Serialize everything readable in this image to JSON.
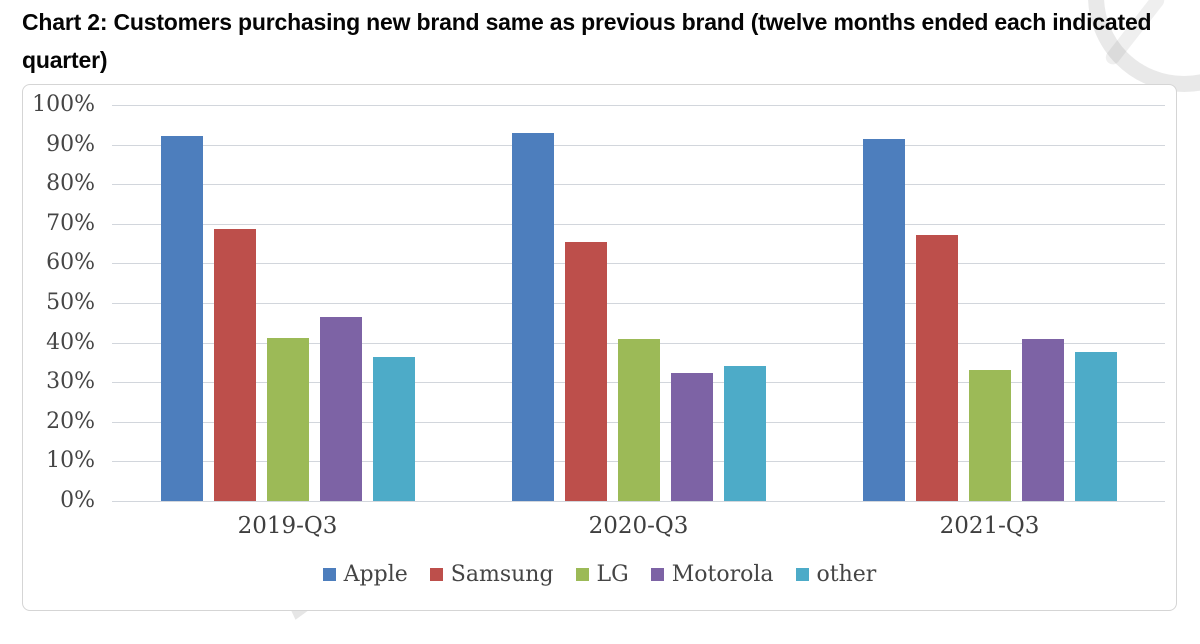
{
  "title": "Chart 2: Customers purchasing new brand same as previous brand (twelve months ended each indicated\nquarter)",
  "chart_data": {
    "type": "bar",
    "title": "Chart 2: Customers purchasing new brand same as previous brand (twelve months ended each indicated quarter)",
    "categories": [
      "2019-Q3",
      "2020-Q3",
      "2021-Q3"
    ],
    "series": [
      {
        "name": "Apple",
        "color": "#4d7ebd",
        "values": [
          92.3,
          93.0,
          91.5
        ]
      },
      {
        "name": "Samsung",
        "color": "#bd4f4b",
        "values": [
          68.8,
          65.3,
          67.3
        ]
      },
      {
        "name": "LG",
        "color": "#9cba57",
        "values": [
          41.3,
          41.0,
          33.1
        ]
      },
      {
        "name": "Motorola",
        "color": "#7d63a5",
        "values": [
          46.5,
          32.3,
          40.9
        ]
      },
      {
        "name": "other",
        "color": "#4dabc8",
        "values": [
          36.3,
          34.2,
          37.6
        ]
      }
    ],
    "xlabel": "",
    "ylabel": "",
    "y_axis": {
      "min": 0,
      "max": 100,
      "step": 10,
      "ticks": [
        "0%",
        "10%",
        "20%",
        "30%",
        "40%",
        "50%",
        "60%",
        "70%",
        "80%",
        "90%",
        "100%"
      ]
    },
    "ylim": [
      0,
      100
    ],
    "grid": true,
    "legend_position": "bottom",
    "bar_unit": "percent"
  },
  "colors": {
    "gridline": "#d2d6dc",
    "axis_text": "#454545",
    "frame_border": "#d5d5d5",
    "title_text": "#050505"
  },
  "watermark": {
    "bottom_left_fragment": "rio"
  }
}
